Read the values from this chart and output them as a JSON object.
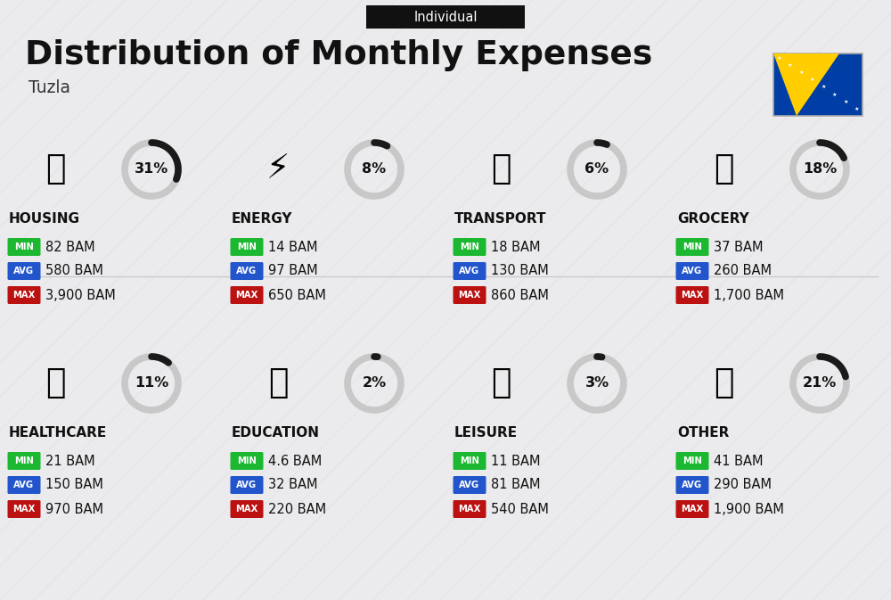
{
  "title": "Distribution of Monthly Expenses",
  "subtitle": "Individual",
  "location": "Tuzla",
  "background_color": "#ebebed",
  "categories": [
    {
      "name": "HOUSING",
      "percent": 31,
      "min": "82 BAM",
      "avg": "580 BAM",
      "max": "3,900 BAM",
      "row": 0,
      "col": 0
    },
    {
      "name": "ENERGY",
      "percent": 8,
      "min": "14 BAM",
      "avg": "97 BAM",
      "max": "650 BAM",
      "row": 0,
      "col": 1
    },
    {
      "name": "TRANSPORT",
      "percent": 6,
      "min": "18 BAM",
      "avg": "130 BAM",
      "max": "860 BAM",
      "row": 0,
      "col": 2
    },
    {
      "name": "GROCERY",
      "percent": 18,
      "min": "37 BAM",
      "avg": "260 BAM",
      "max": "1,700 BAM",
      "row": 0,
      "col": 3
    },
    {
      "name": "HEALTHCARE",
      "percent": 11,
      "min": "21 BAM",
      "avg": "150 BAM",
      "max": "970 BAM",
      "row": 1,
      "col": 0
    },
    {
      "name": "EDUCATION",
      "percent": 2,
      "min": "4.6 BAM",
      "avg": "32 BAM",
      "max": "220 BAM",
      "row": 1,
      "col": 1
    },
    {
      "name": "LEISURE",
      "percent": 3,
      "min": "11 BAM",
      "avg": "81 BAM",
      "max": "540 BAM",
      "row": 1,
      "col": 2
    },
    {
      "name": "OTHER",
      "percent": 21,
      "min": "41 BAM",
      "avg": "290 BAM",
      "max": "1,900 BAM",
      "row": 1,
      "col": 3
    }
  ],
  "min_color": "#1db831",
  "avg_color": "#2255cc",
  "max_color": "#bb1111",
  "circle_fg": "#1a1a1a",
  "circle_bg": "#c8c8c8",
  "text_dark": "#111111",
  "header_bg": "#111111",
  "header_fg": "#ffffff"
}
